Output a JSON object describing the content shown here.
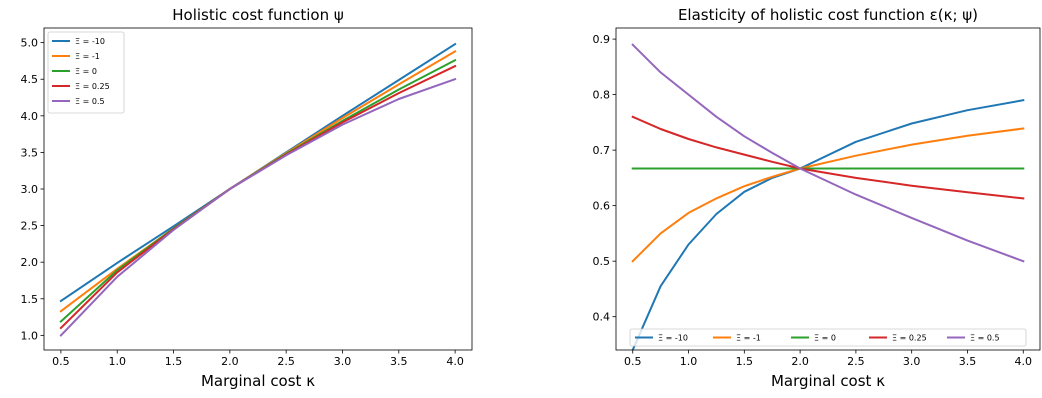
{
  "chart_data": [
    {
      "type": "line",
      "title": "Holistic cost function ψ",
      "xlabel": "Marginal cost κ",
      "ylabel": "",
      "xlim": [
        0.35,
        4.15
      ],
      "ylim": [
        0.8,
        5.2
      ],
      "xticks": [
        "0.5",
        "1.0",
        "1.5",
        "2.0",
        "2.5",
        "3.0",
        "3.5",
        "4.0"
      ],
      "yticks": [
        "1.0",
        "1.5",
        "2.0",
        "2.5",
        "3.0",
        "3.5",
        "4.0",
        "4.5",
        "5.0"
      ],
      "grid": false,
      "legend_position": "upper-left",
      "x": [
        0.5,
        1.0,
        1.5,
        2.0,
        2.5,
        3.0,
        3.5,
        4.0
      ],
      "series": [
        {
          "name": "Ξ = -10",
          "color": "#1f77b4",
          "values": [
            1.47,
            1.99,
            2.49,
            3.0,
            3.5,
            4.0,
            4.49,
            4.98
          ]
        },
        {
          "name": "Ξ = -1",
          "color": "#ff7f0e",
          "values": [
            1.33,
            1.91,
            2.46,
            3.0,
            3.49,
            3.97,
            4.43,
            4.88
          ]
        },
        {
          "name": "Ξ = 0",
          "color": "#2ca02c",
          "values": [
            1.19,
            1.89,
            2.46,
            3.0,
            3.48,
            3.93,
            4.36,
            4.76
          ]
        },
        {
          "name": "Ξ = 0.25",
          "color": "#d62728",
          "values": [
            1.1,
            1.86,
            2.45,
            3.0,
            3.47,
            3.91,
            4.31,
            4.68
          ]
        },
        {
          "name": "Ξ = 0.5",
          "color": "#9467bd",
          "values": [
            1.0,
            1.8,
            2.44,
            3.0,
            3.46,
            3.88,
            4.23,
            4.5
          ]
        }
      ]
    },
    {
      "type": "line",
      "title": "Elasticity of holistic cost function ε(κ; ψ)",
      "xlabel": "Marginal cost κ",
      "ylabel": "",
      "xlim": [
        0.35,
        4.15
      ],
      "ylim": [
        0.34,
        0.92
      ],
      "xticks": [
        "0.5",
        "1.0",
        "1.5",
        "2.0",
        "2.5",
        "3.0",
        "3.5",
        "4.0"
      ],
      "yticks": [
        "0.4",
        "0.5",
        "0.6",
        "0.7",
        "0.8",
        "0.9"
      ],
      "grid": false,
      "legend_position": "lower-center",
      "x": [
        0.5,
        0.75,
        1.0,
        1.25,
        1.5,
        1.75,
        2.0,
        2.5,
        3.0,
        3.5,
        4.0
      ],
      "series": [
        {
          "name": "Ξ = -10",
          "color": "#1f77b4",
          "values": [
            0.34,
            0.455,
            0.53,
            0.585,
            0.625,
            0.65,
            0.667,
            0.715,
            0.748,
            0.772,
            0.79
          ]
        },
        {
          "name": "Ξ = -1",
          "color": "#ff7f0e",
          "values": [
            0.5,
            0.55,
            0.587,
            0.613,
            0.635,
            0.652,
            0.667,
            0.69,
            0.71,
            0.726,
            0.739
          ]
        },
        {
          "name": "Ξ = 0",
          "color": "#2ca02c",
          "values": [
            0.667,
            0.667,
            0.667,
            0.667,
            0.667,
            0.667,
            0.667,
            0.667,
            0.667,
            0.667,
            0.667
          ]
        },
        {
          "name": "Ξ = 0.25",
          "color": "#d62728",
          "values": [
            0.76,
            0.738,
            0.72,
            0.705,
            0.692,
            0.679,
            0.667,
            0.65,
            0.636,
            0.624,
            0.613
          ]
        },
        {
          "name": "Ξ = 0.5",
          "color": "#9467bd",
          "values": [
            0.89,
            0.84,
            0.8,
            0.76,
            0.725,
            0.695,
            0.667,
            0.62,
            0.578,
            0.537,
            0.5
          ]
        }
      ]
    }
  ]
}
